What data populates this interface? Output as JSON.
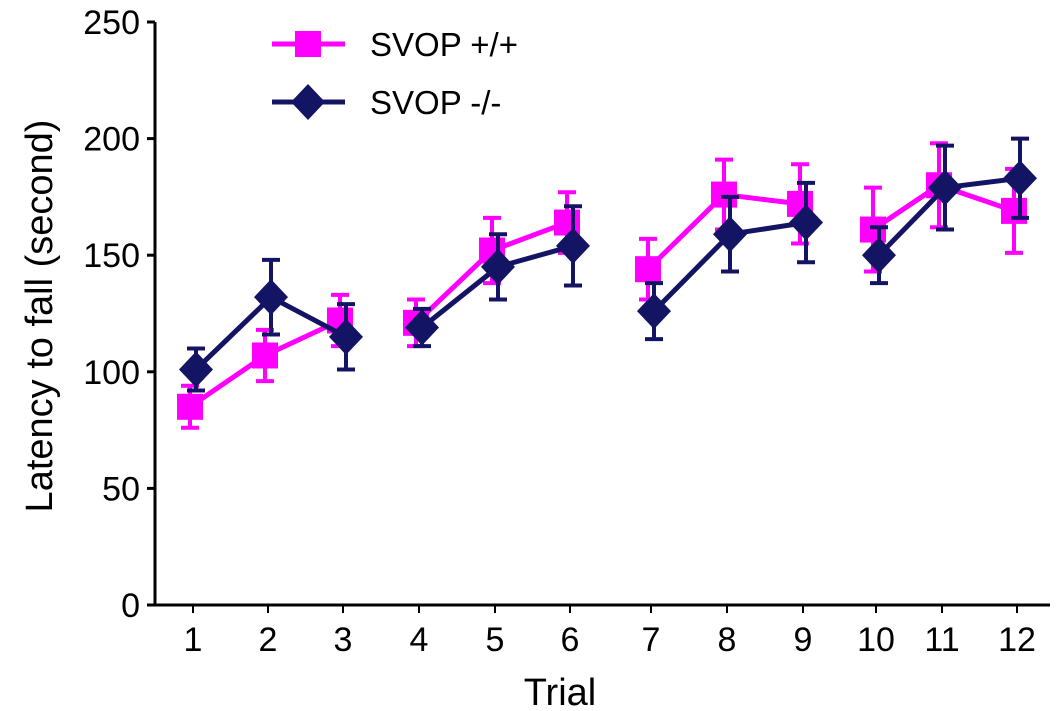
{
  "chart_data": {
    "type": "line",
    "xlabel": "Trial",
    "ylabel": "Latency to fall (second)",
    "ylim": [
      0,
      250
    ],
    "yticks": [
      "0",
      "50",
      "100",
      "150",
      "200",
      "250"
    ],
    "categories": [
      "1",
      "2",
      "3",
      "4",
      "5",
      "6",
      "7",
      "8",
      "9",
      "10",
      "11",
      "12"
    ],
    "groups": [
      [
        1,
        2,
        3
      ],
      [
        4,
        5,
        6
      ],
      [
        7,
        8,
        9
      ],
      [
        10,
        11,
        12
      ]
    ],
    "legend_position": "top-left",
    "grid": false,
    "series": [
      {
        "name": "SVOP +/+",
        "marker": "square",
        "color": "#ff00ff",
        "values": [
          85,
          107,
          122,
          121,
          152,
          164,
          144,
          176,
          172,
          161,
          180,
          169
        ],
        "errors": [
          9,
          11,
          11,
          10,
          14,
          13,
          13,
          15,
          17,
          18,
          18,
          18
        ]
      },
      {
        "name": "SVOP -/-",
        "marker": "diamond",
        "color": "#141464",
        "values": [
          101,
          132,
          115,
          119,
          145,
          154,
          126,
          159,
          164,
          150,
          179,
          183
        ],
        "errors": [
          9,
          16,
          14,
          8,
          14,
          17,
          12,
          16,
          17,
          12,
          18,
          17
        ]
      }
    ]
  }
}
